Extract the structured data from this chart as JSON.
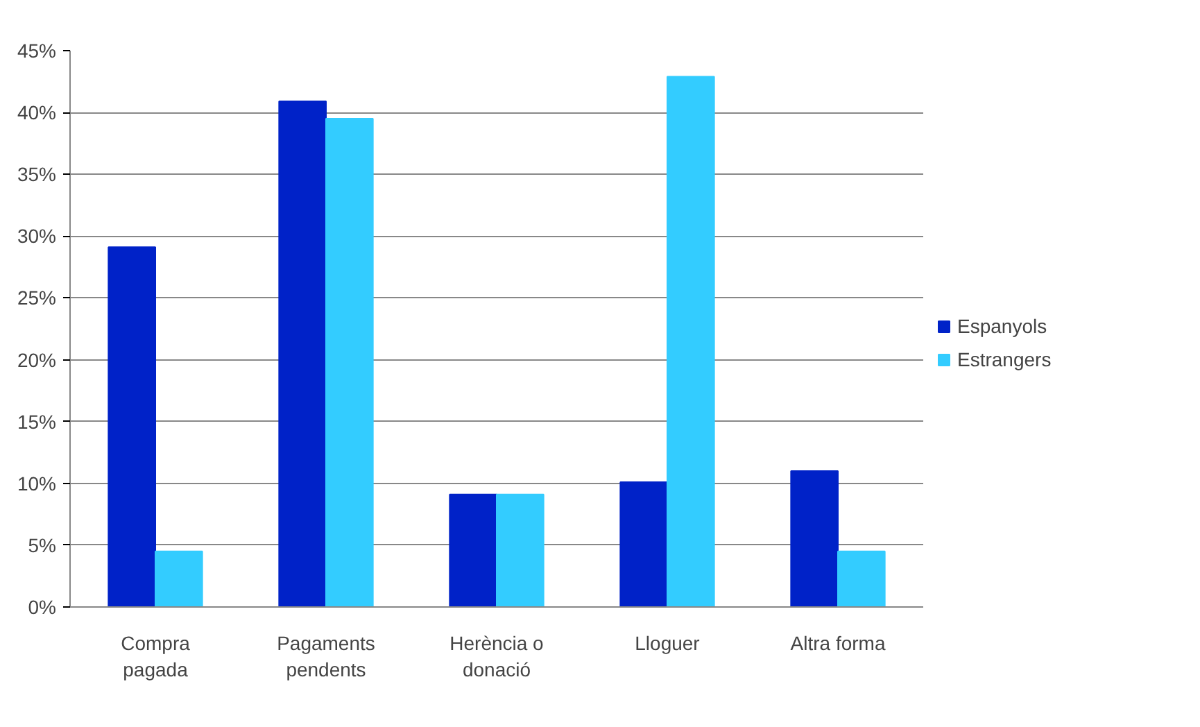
{
  "chart_data": {
    "type": "bar",
    "categories": [
      "Compra\npagada",
      "Pagaments\npendents",
      "Herència o\ndonació",
      "Lloguer",
      "Altra forma"
    ],
    "series": [
      {
        "name": "Espanyols",
        "color": "#0022c8",
        "values": [
          29.1,
          40.9,
          9.1,
          10.1,
          11.0
        ]
      },
      {
        "name": "Estrangers",
        "color": "#33ccff",
        "values": [
          4.5,
          39.5,
          9.1,
          42.9,
          4.5
        ]
      }
    ],
    "ylim": [
      0,
      45
    ],
    "yticks": [
      {
        "value": 0,
        "label": "0%"
      },
      {
        "value": 5,
        "label": "5%"
      },
      {
        "value": 10,
        "label": "10%"
      },
      {
        "value": 15,
        "label": "15%"
      },
      {
        "value": 20,
        "label": "20%"
      },
      {
        "value": 25,
        "label": "25%"
      },
      {
        "value": 30,
        "label": "30%"
      },
      {
        "value": 35,
        "label": "35%"
      },
      {
        "value": 40,
        "label": "40%"
      },
      {
        "value": 45,
        "label": "45%"
      }
    ],
    "grid": "y",
    "legend": "right"
  }
}
